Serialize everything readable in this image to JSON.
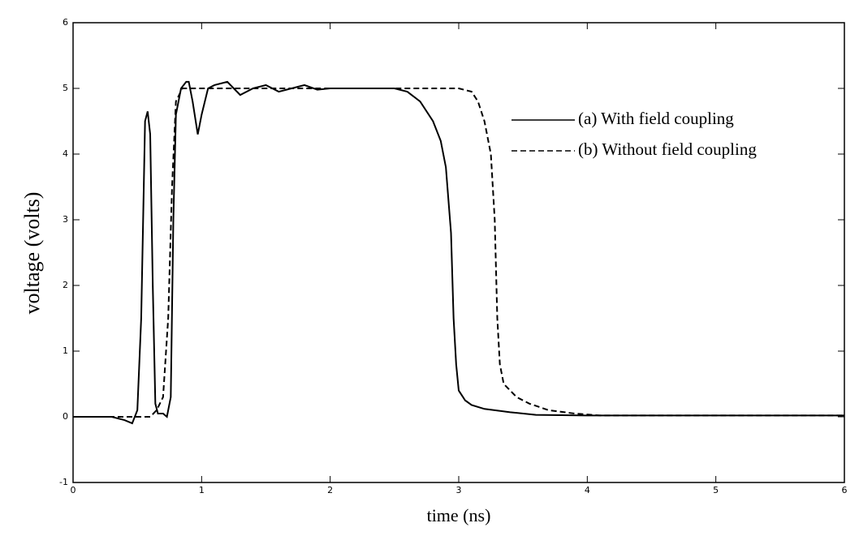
{
  "chart_data": {
    "type": "line",
    "xlabel": "time (ns)",
    "ylabel": "voltage (volts)",
    "xlim": [
      0,
      6
    ],
    "ylim": [
      -1,
      6
    ],
    "xticks": [
      0,
      1,
      2,
      3,
      4,
      5,
      6
    ],
    "yticks": [
      -1,
      0,
      1,
      2,
      3,
      4,
      5,
      6
    ],
    "legend": "upper right",
    "series": [
      {
        "name": "(a) With field coupling",
        "color": "#000000",
        "dash": "solid",
        "x": [
          0,
          0.3,
          0.4,
          0.46,
          0.5,
          0.53,
          0.56,
          0.58,
          0.6,
          0.62,
          0.64,
          0.66,
          0.7,
          0.73,
          0.76,
          0.78,
          0.8,
          0.84,
          0.88,
          0.9,
          0.93,
          0.97,
          1.0,
          1.05,
          1.1,
          1.2,
          1.3,
          1.4,
          1.5,
          1.6,
          1.7,
          1.8,
          1.9,
          2.0,
          2.2,
          2.5,
          2.6,
          2.7,
          2.8,
          2.86,
          2.9,
          2.94,
          2.96,
          2.98,
          3.0,
          3.05,
          3.1,
          3.2,
          3.4,
          3.6,
          4.0,
          6.0
        ],
        "values": [
          0,
          0,
          -0.05,
          -0.1,
          0.1,
          1.5,
          4.5,
          4.65,
          4.3,
          2,
          0.2,
          0.05,
          0.05,
          0,
          0.3,
          3,
          4.6,
          5.0,
          5.1,
          5.1,
          4.8,
          4.3,
          4.6,
          5.0,
          5.05,
          5.1,
          4.9,
          5.0,
          5.05,
          4.95,
          5.0,
          5.05,
          4.98,
          5.0,
          5.0,
          5.0,
          4.95,
          4.8,
          4.5,
          4.2,
          3.8,
          2.8,
          1.5,
          0.8,
          0.4,
          0.25,
          0.18,
          0.12,
          0.07,
          0.03,
          0.02,
          0.02
        ]
      },
      {
        "name": "(b) Without field coupling",
        "color": "#000000",
        "dash": "dashed",
        "x": [
          0,
          0.6,
          0.65,
          0.7,
          0.74,
          0.77,
          0.8,
          0.85,
          3.0,
          3.1,
          3.15,
          3.2,
          3.25,
          3.28,
          3.3,
          3.32,
          3.35,
          3.45,
          3.55,
          3.7,
          3.9,
          4.1,
          6.0
        ],
        "values": [
          0,
          0,
          0.1,
          0.3,
          1.5,
          3.5,
          4.8,
          5.0,
          5.0,
          4.95,
          4.8,
          4.5,
          4.0,
          3,
          1.5,
          0.8,
          0.5,
          0.3,
          0.2,
          0.1,
          0.05,
          0.02,
          0.02
        ]
      }
    ]
  }
}
